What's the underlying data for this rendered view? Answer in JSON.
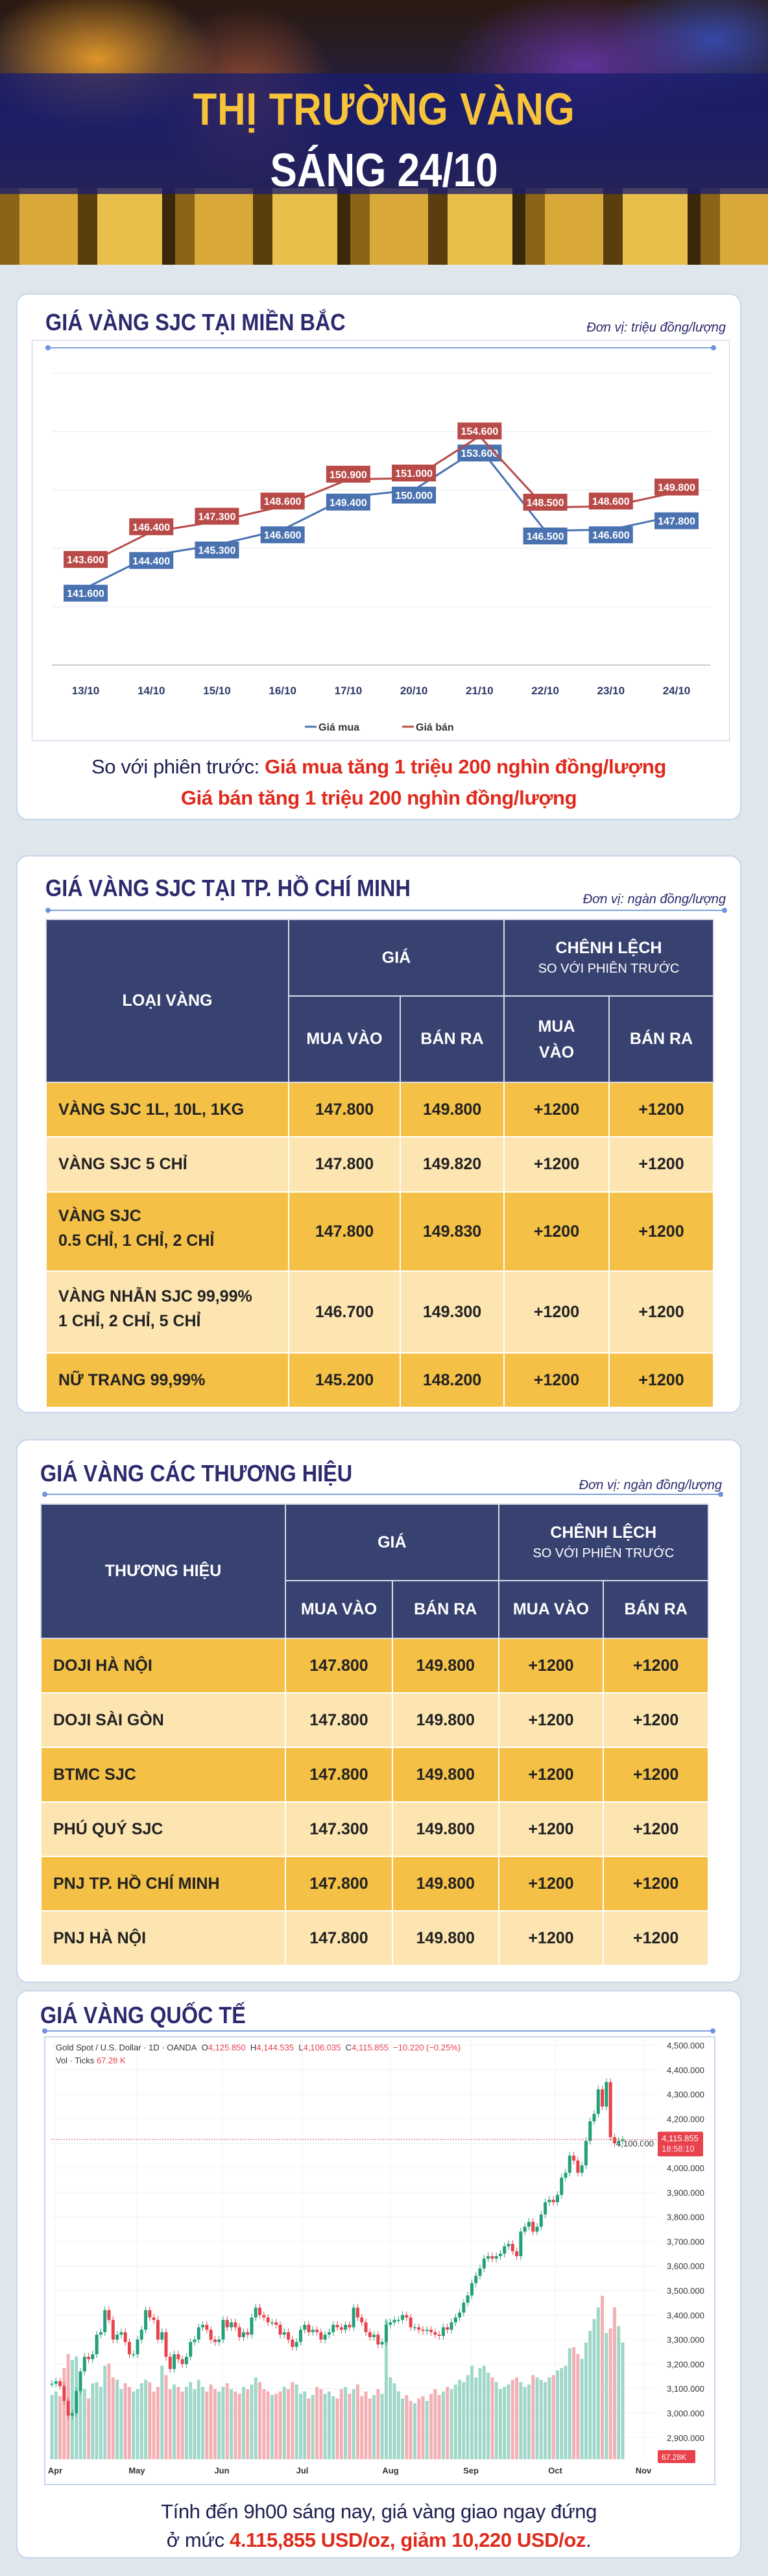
{
  "header": {
    "title_line1": "THỊ TRƯỜNG VÀNG",
    "title_line2": "SÁNG 24/10"
  },
  "north": {
    "title": "GIÁ VÀNG SJC TẠI MIỀN BẮC",
    "unit": "Đơn vị: triệu đồng/lượng",
    "note_prefix": "So với phiên trước: ",
    "note_line1": "Giá mua tăng 1 triệu 200 nghìn đồng/lượng",
    "note_line2": "Giá bán tăng 1 triệu 200 nghìn đồng/lượng"
  },
  "hcm": {
    "title": "GIÁ VÀNG SJC TẠI TP. HỒ CHÍ MINH",
    "unit": "Đơn vị: ngàn đồng/lượng",
    "headers": {
      "type": "LOẠI VÀNG",
      "price": "GIÁ",
      "diff": "CHÊNH LỆCH",
      "diff_sub": "SO VỚI PHIÊN TRƯỚC",
      "buy": "MUA VÀO",
      "sell": "BÁN RA",
      "diff_buy": "MUA VÀO",
      "diff_sell": "BÁN RA"
    },
    "rows": [
      {
        "name": "VÀNG SJC 1L, 10L, 1KG",
        "name2": "",
        "buy": "147.800",
        "sell": "149.800",
        "dbuy": "+1200",
        "dsell": "+1200"
      },
      {
        "name": "VÀNG SJC 5 CHỈ",
        "name2": "",
        "buy": "147.800",
        "sell": "149.820",
        "dbuy": "+1200",
        "dsell": "+1200"
      },
      {
        "name": "VÀNG SJC",
        "name2": "0.5 CHỈ, 1 CHỈ, 2 CHỈ",
        "buy": "147.800",
        "sell": "149.830",
        "dbuy": "+1200",
        "dsell": "+1200"
      },
      {
        "name": "VÀNG NHẪN SJC 99,99%",
        "name2": "1 CHỈ, 2 CHỈ, 5 CHỈ",
        "buy": "146.700",
        "sell": "149.300",
        "dbuy": "+1200",
        "dsell": "+1200"
      },
      {
        "name": "NỮ TRANG 99,99%",
        "name2": "",
        "buy": "145.200",
        "sell": "148.200",
        "dbuy": "+1200",
        "dsell": "+1200"
      }
    ]
  },
  "brands": {
    "title": "GIÁ VÀNG CÁC THƯƠNG HIỆU",
    "unit": "Đơn vị: ngàn đồng/lượng",
    "headers": {
      "brand": "THƯƠNG HIỆU",
      "price": "GIÁ",
      "diff": "CHÊNH LỆCH",
      "diff_sub": "SO VỚI PHIÊN TRƯỚC",
      "buy": "MUA VÀO",
      "sell": "BÁN RA",
      "diff_buy": "MUA VÀO",
      "diff_sell": "BÁN RA"
    },
    "rows": [
      {
        "name": "DOJI HÀ NỘI",
        "buy": "147.800",
        "sell": "149.800",
        "dbuy": "+1200",
        "dsell": "+1200"
      },
      {
        "name": "DOJI SÀI GÒN",
        "buy": "147.800",
        "sell": "149.800",
        "dbuy": "+1200",
        "dsell": "+1200"
      },
      {
        "name": "BTMC SJC",
        "buy": "147.800",
        "sell": "149.800",
        "dbuy": "+1200",
        "dsell": "+1200"
      },
      {
        "name": "PHÚ QUÝ SJC",
        "buy": "147.300",
        "sell": "149.800",
        "dbuy": "+1200",
        "dsell": "+1200"
      },
      {
        "name": "PNJ TP. HỒ CHÍ MINH",
        "buy": "147.800",
        "sell": "149.800",
        "dbuy": "+1200",
        "dsell": "+1200"
      },
      {
        "name": "PNJ HÀ NỘI",
        "buy": "147.800",
        "sell": "149.800",
        "dbuy": "+1200",
        "dsell": "+1200"
      }
    ]
  },
  "intl": {
    "title": "GIÁ VÀNG QUỐC TẾ",
    "legend_symbol": "Gold Spot / U.S. Dollar · 1D · OANDA",
    "o_label": "O",
    "o": "4,125.850",
    "h_label": "H",
    "h": "4,144.535",
    "l_label": "L",
    "l": "4,106.035",
    "c_label": "C",
    "c": "4,115.855",
    "change": "−10.220 (−0.25%)",
    "vol_label": "Vol · Ticks",
    "vol": "67.28 K",
    "price_tag": "4,115.855",
    "countdown": "18:58:10",
    "vol_tag": "67.28K",
    "note_line1": "Tính đến 9h00 sáng nay, giá vàng giao ngay đứng",
    "note_prefix": "ở mức ",
    "note_value": "4.115,855 USD/oz, giảm 10,220 USD/oz",
    "note_suffix": "."
  },
  "chart_data": [
    {
      "type": "line",
      "title": "GIÁ VÀNG SJC TẠI MIỀN BẮC",
      "categories": [
        "13/10",
        "14/10",
        "15/10",
        "16/10",
        "17/10",
        "20/10",
        "21/10",
        "22/10",
        "23/10",
        "24/10"
      ],
      "series": [
        {
          "name": "Giá mua",
          "color": "#4a72b0",
          "values": [
            141.6,
            144.4,
            145.3,
            146.6,
            149.4,
            150.0,
            153.6,
            146.5,
            146.6,
            147.8
          ],
          "labels": [
            "141.600",
            "144.400",
            "145.300",
            "146.600",
            "149.400",
            "150.000",
            "153.600",
            "146.500",
            "146.600",
            "147.800"
          ]
        },
        {
          "name": "Giá bán",
          "color": "#b84a48",
          "values": [
            143.6,
            146.4,
            147.3,
            148.6,
            150.9,
            151.0,
            154.6,
            148.5,
            148.6,
            149.8
          ],
          "labels": [
            "143.600",
            "146.400",
            "147.300",
            "148.600",
            "150.900",
            "151.000",
            "154.600",
            "148.500",
            "148.600",
            "149.800"
          ]
        }
      ],
      "ylim": [
        135,
        160
      ],
      "grid": true,
      "legend": "bottom"
    },
    {
      "type": "candlestick",
      "title": "Gold Spot / U.S. Dollar · 1D · OANDA",
      "ylim": [
        2850,
        4500
      ],
      "yticks": [
        "4,500.000",
        "4,400.000",
        "4,300.000",
        "4,200.000",
        "4,100.000",
        "4,000.000",
        "3,900.000",
        "3,800.000",
        "3,700.000",
        "3,600.000",
        "3,500.000",
        "3,400.000",
        "3,300.000",
        "3,200.000",
        "3,100.000",
        "3,000.000",
        "2,900.000"
      ],
      "xticks": [
        "Apr",
        "May",
        "Jun",
        "Jul",
        "Aug",
        "Sep",
        "Oct",
        "Nov"
      ],
      "up_color": "#22a07a",
      "down_color": "#e8424c",
      "first_open": 3120,
      "closes": [
        3120,
        3130,
        3110,
        3050,
        2990,
        3000,
        3090,
        3170,
        3230,
        3220,
        3240,
        3320,
        3330,
        3420,
        3380,
        3300,
        3320,
        3330,
        3290,
        3240,
        3240,
        3300,
        3340,
        3420,
        3390,
        3380,
        3300,
        3330,
        3230,
        3180,
        3240,
        3220,
        3200,
        3230,
        3290,
        3300,
        3350,
        3360,
        3340,
        3300,
        3290,
        3300,
        3380,
        3350,
        3370,
        3350,
        3310,
        3330,
        3320,
        3390,
        3430,
        3400,
        3390,
        3370,
        3370,
        3360,
        3320,
        3330,
        3300,
        3270,
        3290,
        3340,
        3360,
        3330,
        3340,
        3330,
        3300,
        3320,
        3330,
        3360,
        3350,
        3340,
        3360,
        3350,
        3430,
        3390,
        3370,
        3330,
        3310,
        3320,
        3280,
        3290,
        3360,
        3370,
        3380,
        3380,
        3400,
        3390,
        3350,
        3350,
        3340,
        3335,
        3340,
        3330,
        3320,
        3315,
        3350,
        3340,
        3370,
        3390,
        3410,
        3450,
        3480,
        3530,
        3560,
        3590,
        3630,
        3640,
        3630,
        3640,
        3650,
        3680,
        3690,
        3660,
        3640,
        3740,
        3760,
        3780,
        3740,
        3760,
        3810,
        3860,
        3870,
        3860,
        3890,
        3960,
        3980,
        4050,
        4030,
        3980,
        4010,
        4110,
        4190,
        4220,
        4320,
        4250,
        4350,
        4125,
        4100,
        4110,
        4116
      ],
      "volumes_k": [
        55,
        58,
        54,
        78,
        90,
        85,
        88,
        75,
        60,
        52,
        65,
        66,
        62,
        80,
        82,
        70,
        68,
        60,
        65,
        62,
        58,
        60,
        65,
        68,
        66,
        58,
        62,
        80,
        72,
        60,
        64,
        62,
        58,
        62,
        66,
        60,
        68,
        62,
        58,
        64,
        60,
        58,
        62,
        65,
        60,
        58,
        56,
        62,
        60,
        64,
        70,
        66,
        60,
        58,
        55,
        56,
        58,
        62,
        60,
        66,
        64,
        56,
        58,
        52,
        55,
        62,
        60,
        56,
        58,
        54,
        52,
        60,
        62,
        56,
        60,
        64,
        54,
        58,
        52,
        55,
        60,
        56,
        120,
        70,
        65,
        58,
        52,
        55,
        50,
        48,
        52,
        54,
        50,
        56,
        60,
        55,
        58,
        62,
        60,
        64,
        68,
        66,
        72,
        80,
        70,
        78,
        80,
        74,
        70,
        66,
        60,
        62,
        64,
        68,
        70,
        66,
        62,
        64,
        72,
        70,
        68,
        66,
        70,
        72,
        76,
        78,
        80,
        95,
        96,
        90,
        86,
        100,
        110,
        120,
        130,
        140,
        108,
        112,
        130,
        114,
        100
      ],
      "last_price": 4115.855
    }
  ]
}
